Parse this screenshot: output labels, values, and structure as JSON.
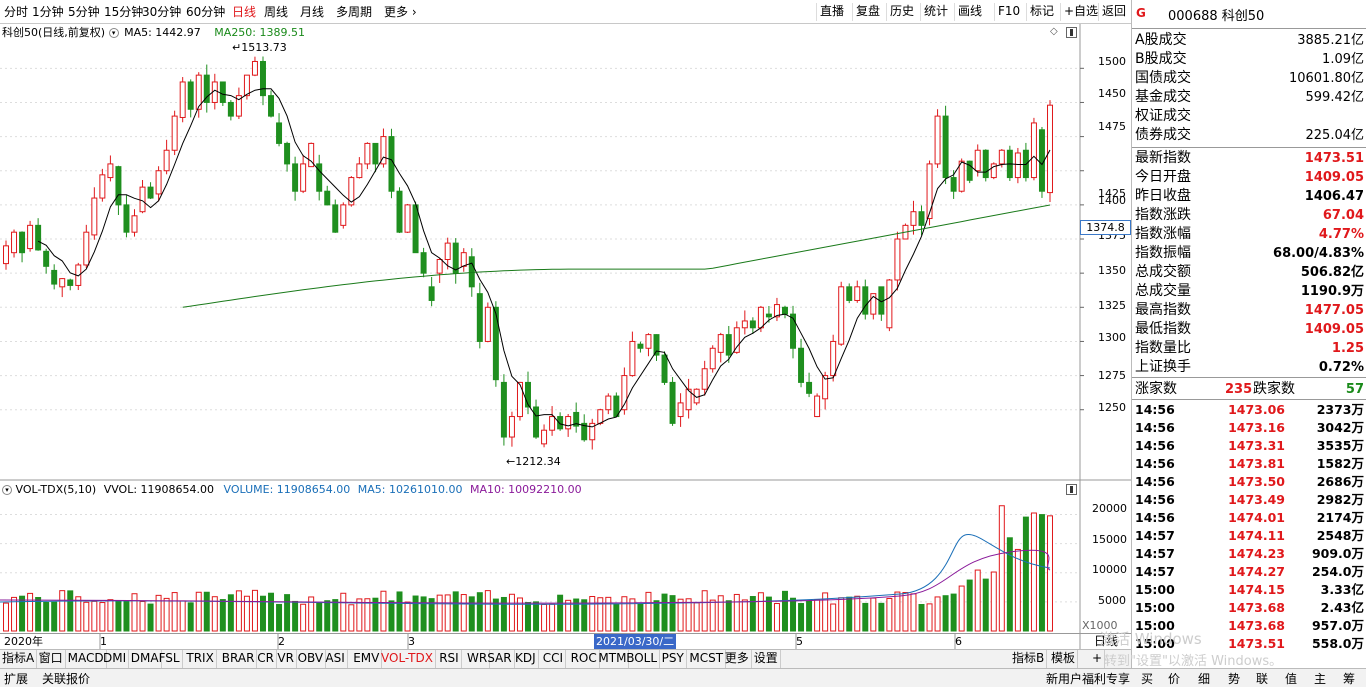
{
  "period_tabs": [
    "分时",
    "1分钟",
    "5分钟",
    "15分钟",
    "30分钟",
    "60分钟",
    "日线",
    "周线",
    "月线",
    "多周期",
    "更多"
  ],
  "active_period": "日线",
  "right_buttons": [
    "直播",
    "复盘",
    "历史",
    "统计",
    "画线",
    "F10",
    "标记",
    "+自选",
    "返回"
  ],
  "main_chart": {
    "name": "科创50(日线,前复权)",
    "ma5": "MA5: 1442.97",
    "ma250": "MA250: 1389.51",
    "high_label": "1513.73",
    "low_label": "1212.34",
    "current_price_tag": "1374.8",
    "y_ticks": [
      "1500",
      "1475",
      "1450",
      "1425",
      "1400",
      "1375",
      "1350",
      "1325",
      "1300",
      "1275",
      "1250"
    ]
  },
  "volume_chart": {
    "name": "VOL-TDX(5,10)",
    "vvol": "VVOL: 11908654.00",
    "volume": "VOLUME: 11908654.00",
    "ma5": "MA5: 10261010.00",
    "ma10": "MA10: 10092210.00",
    "y_ticks": [
      "20000",
      "15000",
      "10000",
      "5000"
    ],
    "unit": "X1000"
  },
  "time_axis": {
    "labels": [
      "2020年",
      "1",
      "2",
      "3",
      "2021/03/30/二",
      "5",
      "6"
    ],
    "right_label": "日线"
  },
  "indicator_tabs": [
    "指标A",
    "窗口",
    "MACD",
    "DMI",
    "DMA",
    "FSL",
    "TRIX",
    "BRAR",
    "CR",
    "VR",
    "OBV",
    "ASI",
    "EMV",
    "VOL-TDX",
    "RSI",
    "WR",
    "SAR",
    "KDJ",
    "CCI",
    "ROC",
    "MTM",
    "BOLL",
    "PSY",
    "MCST",
    "更多",
    "设置"
  ],
  "active_indicator": "VOL-TDX",
  "indicator_right": [
    "指标B",
    "模板",
    "+"
  ],
  "status_bar": {
    "left": [
      "扩展",
      "关联报价"
    ],
    "right": [
      "新用户福利专享",
      "买",
      "价",
      "细",
      "势",
      "联",
      "值",
      "主",
      "筹"
    ]
  },
  "windows_watermark": {
    "line1": "激活 Windows",
    "line2": "转到\"设置\"以激活 Windows。"
  },
  "quote": {
    "flag": "G",
    "code": "000688",
    "name": "科创50",
    "rows1": [
      {
        "label": "A股成交",
        "value": "3885.21亿",
        "color": "black"
      },
      {
        "label": "B股成交",
        "value": "1.09亿",
        "color": "black"
      },
      {
        "label": "国债成交",
        "value": "10601.80亿",
        "color": "black"
      },
      {
        "label": "基金成交",
        "value": "599.42亿",
        "color": "black"
      },
      {
        "label": "权证成交",
        "value": "",
        "color": "black"
      },
      {
        "label": "债券成交",
        "value": "225.04亿",
        "color": "black"
      }
    ],
    "rows2": [
      {
        "label": "最新指数",
        "value": "1473.51",
        "color": "red"
      },
      {
        "label": "今日开盘",
        "value": "1409.05",
        "color": "red"
      },
      {
        "label": "昨日收盘",
        "value": "1406.47",
        "color": "black"
      },
      {
        "label": "指数涨跌",
        "value": "67.04",
        "color": "red"
      },
      {
        "label": "指数涨幅",
        "value": "4.77%",
        "color": "red"
      },
      {
        "label": "指数振幅",
        "value": "68.00/4.83%",
        "color": "black"
      },
      {
        "label": "总成交额",
        "value": "506.82亿",
        "color": "black"
      },
      {
        "label": "总成交量",
        "value": "1190.9万",
        "color": "black"
      },
      {
        "label": "最高指数",
        "value": "1477.05",
        "color": "red"
      },
      {
        "label": "最低指数",
        "value": "1409.05",
        "color": "red"
      },
      {
        "label": "指数量比",
        "value": "1.25",
        "color": "red"
      },
      {
        "label": "上证换手",
        "value": "0.72%",
        "color": "black"
      }
    ],
    "up_label": "涨家数",
    "up": "235",
    "down_label": "跌家数",
    "down": "57",
    "ticks": [
      {
        "time": "14:56",
        "price": "1473.06",
        "vol": "2373万"
      },
      {
        "time": "14:56",
        "price": "1473.16",
        "vol": "3042万"
      },
      {
        "time": "14:56",
        "price": "1473.31",
        "vol": "3535万"
      },
      {
        "time": "14:56",
        "price": "1473.81",
        "vol": "1582万"
      },
      {
        "time": "14:56",
        "price": "1473.50",
        "vol": "2686万"
      },
      {
        "time": "14:56",
        "price": "1473.49",
        "vol": "2982万"
      },
      {
        "time": "14:56",
        "price": "1474.01",
        "vol": "2174万"
      },
      {
        "time": "14:57",
        "price": "1474.11",
        "vol": "2548万"
      },
      {
        "time": "14:57",
        "price": "1474.23",
        "vol": "909.0万"
      },
      {
        "time": "14:57",
        "price": "1474.27",
        "vol": "254.0万"
      },
      {
        "time": "15:00",
        "price": "1474.15",
        "vol": "3.33亿"
      },
      {
        "time": "15:00",
        "price": "1473.68",
        "vol": "2.43亿"
      },
      {
        "time": "15:00",
        "price": "1473.68",
        "vol": "957.0万"
      },
      {
        "time": "15:00",
        "price": "1473.51",
        "vol": "558.0万"
      }
    ]
  },
  "chart_data": {
    "type": "candlestick",
    "y_range": [
      1200,
      1520
    ],
    "ma250_label": "MA250",
    "candles": [
      [
        1357,
        1370
      ],
      [
        1365,
        1380
      ],
      [
        1380,
        1365
      ],
      [
        1368,
        1385
      ],
      [
        1385,
        1367
      ],
      [
        1366,
        1355
      ],
      [
        1352,
        1342
      ],
      [
        1340,
        1346
      ],
      [
        1345,
        1341
      ],
      [
        1341,
        1356
      ],
      [
        1356,
        1380
      ],
      [
        1378,
        1405
      ],
      [
        1405,
        1422
      ],
      [
        1420,
        1430
      ],
      [
        1428,
        1400
      ],
      [
        1400,
        1380
      ],
      [
        1380,
        1392
      ],
      [
        1395,
        1413
      ],
      [
        1413,
        1405
      ],
      [
        1408,
        1425
      ],
      [
        1425,
        1440
      ],
      [
        1440,
        1465
      ],
      [
        1464,
        1490
      ],
      [
        1490,
        1470
      ],
      [
        1470,
        1495
      ],
      [
        1495,
        1475
      ],
      [
        1475,
        1490
      ],
      [
        1490,
        1475
      ],
      [
        1475,
        1465
      ],
      [
        1465,
        1480
      ],
      [
        1480,
        1495
      ],
      [
        1495,
        1505
      ],
      [
        1505,
        1480
      ],
      [
        1480,
        1465
      ],
      [
        1460,
        1445
      ],
      [
        1445,
        1430
      ],
      [
        1430,
        1410
      ],
      [
        1410,
        1430
      ],
      [
        1428,
        1445
      ],
      [
        1430,
        1410
      ],
      [
        1410,
        1400
      ],
      [
        1400,
        1380
      ],
      [
        1385,
        1400
      ],
      [
        1400,
        1420
      ],
      [
        1420,
        1430
      ],
      [
        1430,
        1445
      ],
      [
        1445,
        1430
      ],
      [
        1430,
        1450
      ],
      [
        1450,
        1410
      ],
      [
        1410,
        1380
      ],
      [
        1380,
        1400
      ],
      [
        1400,
        1365
      ],
      [
        1365,
        1350
      ],
      [
        1340,
        1330
      ],
      [
        1350,
        1360
      ],
      [
        1360,
        1372
      ],
      [
        1372,
        1350
      ],
      [
        1355,
        1365
      ],
      [
        1362,
        1340
      ],
      [
        1335,
        1300
      ],
      [
        1300,
        1325
      ],
      [
        1325,
        1272
      ],
      [
        1270,
        1230
      ],
      [
        1230,
        1245
      ],
      [
        1245,
        1270
      ],
      [
        1270,
        1252
      ],
      [
        1252,
        1230
      ],
      [
        1225,
        1235
      ],
      [
        1235,
        1245
      ],
      [
        1245,
        1236
      ],
      [
        1236,
        1245
      ],
      [
        1248,
        1238
      ],
      [
        1240,
        1228
      ],
      [
        1228,
        1240
      ],
      [
        1240,
        1250
      ],
      [
        1250,
        1260
      ],
      [
        1260,
        1245
      ],
      [
        1250,
        1275
      ],
      [
        1275,
        1300
      ],
      [
        1298,
        1295
      ],
      [
        1295,
        1305
      ],
      [
        1305,
        1290
      ],
      [
        1290,
        1270
      ],
      [
        1270,
        1240
      ],
      [
        1245,
        1255
      ],
      [
        1250,
        1265
      ],
      [
        1255,
        1265
      ],
      [
        1265,
        1280
      ],
      [
        1280,
        1295
      ],
      [
        1292,
        1305
      ],
      [
        1305,
        1290
      ],
      [
        1292,
        1310
      ],
      [
        1310,
        1315
      ],
      [
        1315,
        1310
      ],
      [
        1310,
        1325
      ],
      [
        1320,
        1318
      ],
      [
        1318,
        1327
      ],
      [
        1325,
        1320
      ],
      [
        1320,
        1295
      ],
      [
        1295,
        1270
      ],
      [
        1270,
        1262
      ],
      [
        1245,
        1260
      ],
      [
        1258,
        1275
      ],
      [
        1275,
        1300
      ],
      [
        1298,
        1340
      ],
      [
        1340,
        1330
      ],
      [
        1330,
        1340
      ],
      [
        1340,
        1320
      ],
      [
        1320,
        1335
      ],
      [
        1340,
        1320
      ],
      [
        1310,
        1345
      ],
      [
        1345,
        1375
      ],
      [
        1375,
        1385
      ],
      [
        1385,
        1395
      ],
      [
        1395,
        1385
      ],
      [
        1390,
        1430
      ],
      [
        1430,
        1465
      ],
      [
        1465,
        1420
      ],
      [
        1420,
        1410
      ],
      [
        1410,
        1432
      ],
      [
        1432,
        1418
      ],
      [
        1425,
        1440
      ],
      [
        1440,
        1420
      ],
      [
        1420,
        1430
      ],
      [
        1430,
        1440
      ],
      [
        1440,
        1420
      ],
      [
        1420,
        1438
      ],
      [
        1440,
        1420
      ],
      [
        1420,
        1460
      ],
      [
        1455,
        1410
      ],
      [
        1409,
        1473
      ]
    ],
    "volume_ylim": [
      0,
      23000
    ]
  }
}
